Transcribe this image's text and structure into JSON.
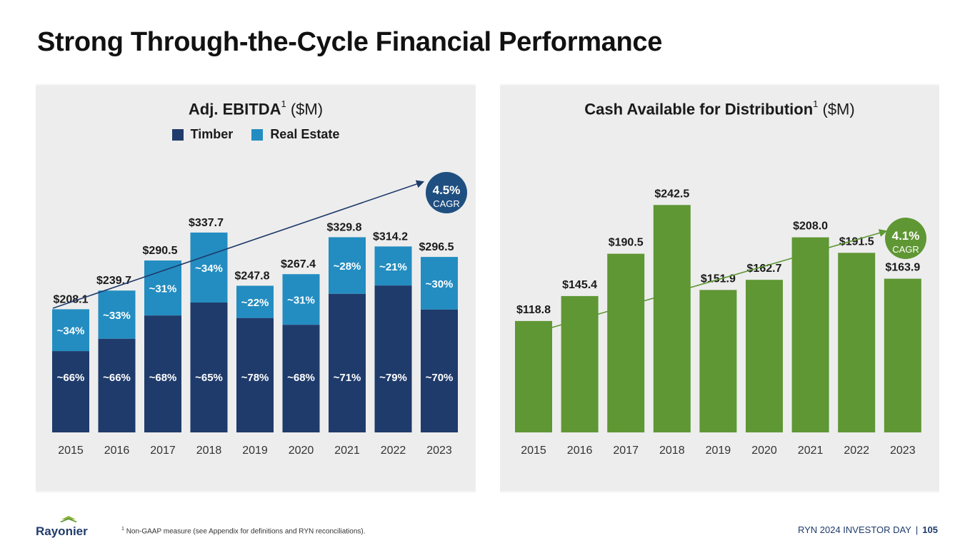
{
  "page": {
    "title": "Strong Through-the-Cycle Financial Performance",
    "footnote_mark": "1",
    "footnote": "Non-GAAP measure (see Appendix for definitions and RYN reconciliations).",
    "footer_text": "RYN 2024 INVESTOR DAY",
    "footer_separator": "|",
    "page_number": "105",
    "logo_text": "Rayonier"
  },
  "colors": {
    "timber": "#1f3b6b",
    "real_estate": "#238dc1",
    "cad": "#5f9734",
    "cagr_left_bg": "#1f4f80",
    "cagr_right_bg": "#5f9734",
    "panel_bg": "#ededed"
  },
  "left": {
    "title_bold": "Adj. EBITDA",
    "title_sup": "1",
    "title_unit": "($M)",
    "legend": [
      "Timber",
      "Real Estate"
    ],
    "cagr_value": "4.5%",
    "cagr_label": "CAGR"
  },
  "right": {
    "title_bold": "Cash Available for Distribution",
    "title_sup": "1",
    "title_unit": "($M)",
    "cagr_value": "4.1%",
    "cagr_label": "CAGR"
  },
  "chart_data": [
    {
      "type": "bar",
      "stacked": true,
      "title": "Adj. EBITDA ($M)",
      "categories": [
        "2015",
        "2016",
        "2017",
        "2018",
        "2019",
        "2020",
        "2021",
        "2022",
        "2023"
      ],
      "totals": [
        208.1,
        239.7,
        290.5,
        337.7,
        247.8,
        267.4,
        329.8,
        314.2,
        296.5
      ],
      "total_labels": [
        "$208.1",
        "$239.7",
        "$290.5",
        "$337.7",
        "$247.8",
        "$267.4",
        "$329.8",
        "$314.2",
        "$296.5"
      ],
      "series": [
        {
          "name": "Timber",
          "share_labels": [
            "~66%",
            "~66%",
            "~68%",
            "~65%",
            "~78%",
            "~68%",
            "~71%",
            "~79%",
            "~70%"
          ],
          "share": [
            0.66,
            0.66,
            0.68,
            0.65,
            0.78,
            0.68,
            0.71,
            0.79,
            0.7
          ]
        },
        {
          "name": "Real Estate",
          "share_labels": [
            "~34%",
            "~33%",
            "~31%",
            "~34%",
            "~22%",
            "~31%",
            "~28%",
            "~21%",
            "~30%"
          ],
          "share": [
            0.34,
            0.33,
            0.31,
            0.34,
            0.22,
            0.31,
            0.28,
            0.21,
            0.3
          ]
        }
      ],
      "ylim": [
        0,
        340
      ],
      "trend": {
        "from": "2015",
        "to": "2023",
        "cagr": "4.5%"
      },
      "legend": "top"
    },
    {
      "type": "bar",
      "title": "Cash Available for Distribution ($M)",
      "categories": [
        "2015",
        "2016",
        "2017",
        "2018",
        "2019",
        "2020",
        "2021",
        "2022",
        "2023"
      ],
      "values": [
        118.8,
        145.4,
        190.5,
        242.5,
        151.9,
        162.7,
        208.0,
        191.5,
        163.9
      ],
      "value_labels": [
        "$118.8",
        "$145.4",
        "$190.5",
        "$242.5",
        "$151.9",
        "$162.7",
        "$208.0",
        "$191.5",
        "$163.9"
      ],
      "ylim": [
        0,
        245
      ],
      "trend": {
        "from": "2015",
        "to": "2023",
        "cagr": "4.1%"
      }
    }
  ]
}
